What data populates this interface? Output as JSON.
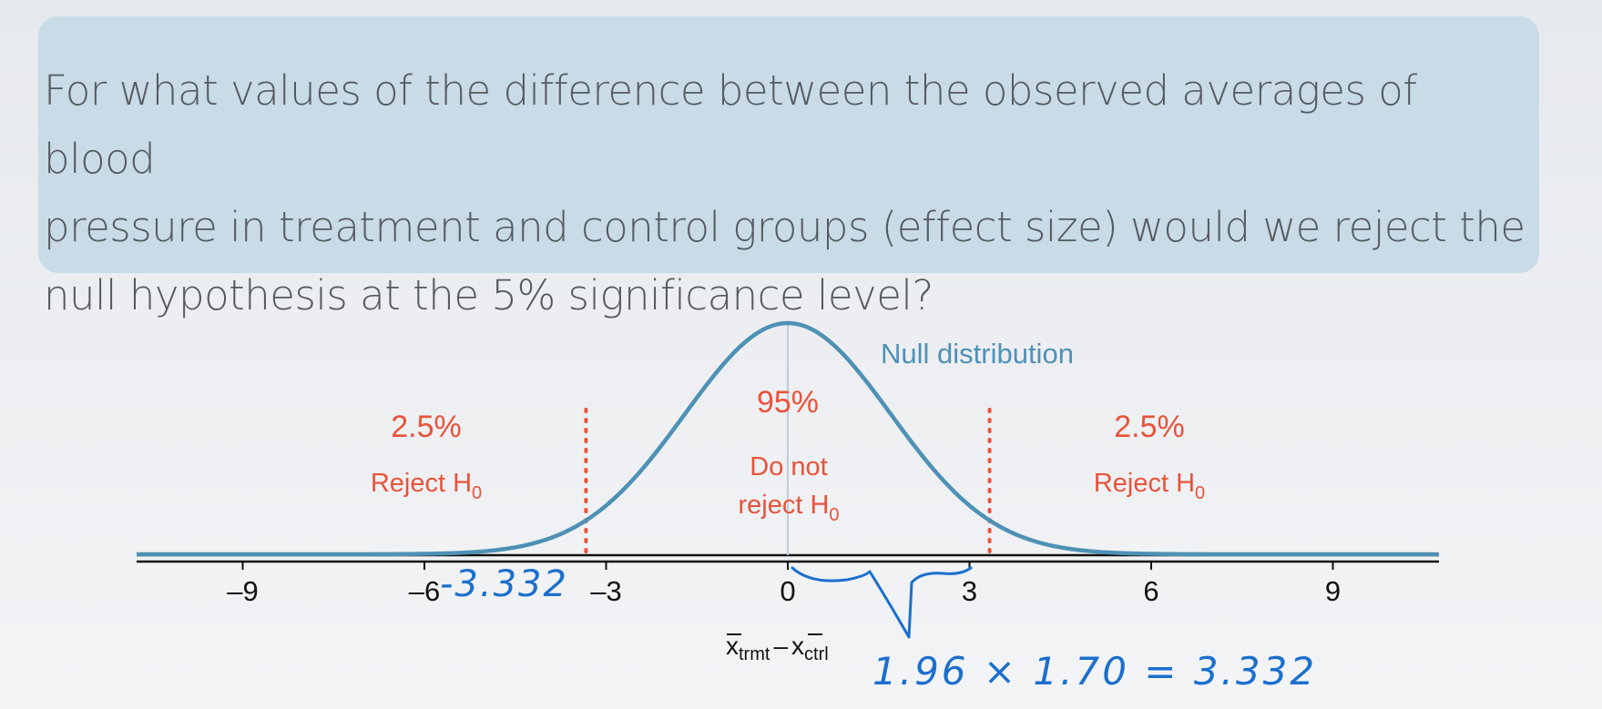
{
  "question": {
    "line1": "For what values of the difference between the observed averages of blood",
    "line2": "pressure in treatment and control groups (effect size) would we reject the",
    "line3": "null hypothesis at the 5% significance level?"
  },
  "chart_data": {
    "type": "line",
    "title": "",
    "curve_label": "Null distribution",
    "distribution": {
      "family": "normal",
      "mean": 0,
      "sd": 1.7
    },
    "xlim": [
      -10.6,
      10.6
    ],
    "xticks": [
      -9,
      -6,
      -3,
      0,
      3,
      6,
      9
    ],
    "xtick_labels": [
      "–9",
      "–6",
      "–3",
      "0",
      "3",
      "6",
      "9"
    ],
    "xlabel": {
      "x1": "x",
      "sub1": "trmt",
      "minus": "–",
      "x2": "x",
      "sub2": "ctrl"
    },
    "critical_values": [
      -3.332,
      3.332
    ],
    "regions": [
      {
        "name": "left",
        "percent": "2.5%",
        "label": "Reject H",
        "sub": "0"
      },
      {
        "name": "middle",
        "percent": "95%",
        "label1": "Do not",
        "label2": "reject H",
        "sub": "0"
      },
      {
        "name": "right",
        "percent": "2.5%",
        "label": "Reject H",
        "sub": "0"
      }
    ],
    "annotations": {
      "left_critical": "-3.332",
      "equation": "1.96 × 1.70 = 3.332"
    }
  },
  "colors": {
    "curve": "#4e91b5",
    "reject": "#e8533a",
    "handwriting": "#1b6fcc",
    "axis": "#111111"
  }
}
